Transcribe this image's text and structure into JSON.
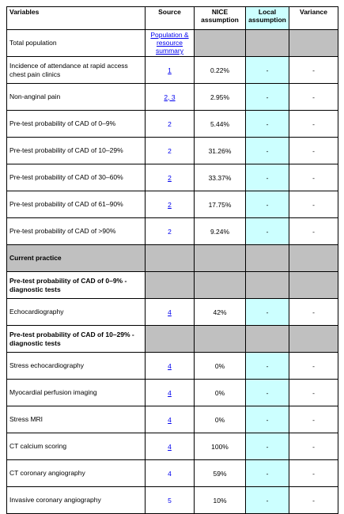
{
  "table": {
    "header": [
      "Variables",
      "Source",
      "NICE assumption",
      "Local assumption",
      "Variance"
    ],
    "rows": [
      {
        "variable": "Total population",
        "source": "Population & resource summary"
      },
      {
        "variable": "Incidence of attendance at rapid access chest pain clinics",
        "source": "1",
        "nice": "0.22%",
        "local": "-",
        "variance": "-"
      },
      {
        "variable": "Non-anginal pain",
        "source": "2, 3",
        "nice": "2.95%",
        "local": "-",
        "variance": "-"
      },
      {
        "variable": "Pre-test probability of CAD of 0–9%",
        "source": "2",
        "nice": "5.44%",
        "local": "-",
        "variance": "-"
      },
      {
        "variable": "Pre-test probability of CAD of 10–29%",
        "source": "2",
        "nice": "31.26%",
        "local": "-",
        "variance": "-"
      },
      {
        "variable": "Pre-test probability of CAD of 30–60%",
        "source": "2",
        "nice": "33.37%",
        "local": "-",
        "variance": "-"
      },
      {
        "variable": "Pre-test probability of CAD of 61–90%",
        "source": "2",
        "nice": "17.75%",
        "local": "-",
        "variance": "-"
      },
      {
        "variable": "Pre-test probability of CAD of >90%",
        "source": "2",
        "nice": "9.24%",
        "local": "-",
        "variance": "-"
      },
      {
        "variable": "Current practice"
      },
      {
        "variable": "Pre-test probability of CAD of 0–9% - diagnostic tests"
      },
      {
        "variable": "Echocardiography",
        "source": "4",
        "nice": "42%",
        "local": "-",
        "variance": "-"
      },
      {
        "variable": "Pre-test probability of CAD of 10–29% - diagnostic tests"
      },
      {
        "variable": "Stress echocardiography",
        "source": "4",
        "nice": "0%",
        "local": "-",
        "variance": "-"
      },
      {
        "variable": "Myocardial perfusion imaging",
        "source": "4",
        "nice": "0%",
        "local": "-",
        "variance": "-"
      },
      {
        "variable": "Stress MRI",
        "source": "4",
        "nice": "0%",
        "local": "-",
        "variance": "-"
      },
      {
        "variable": "CT calcium scoring",
        "source": "4",
        "nice": "100%",
        "local": "-",
        "variance": "-"
      },
      {
        "variable": "CT coronary angiography",
        "source": "4",
        "nice": "59%",
        "local": "-",
        "variance": "-"
      },
      {
        "variable": "Invasive coronary angiography",
        "source": "5",
        "nice": "10%",
        "local": "-",
        "variance": "-"
      }
    ]
  }
}
